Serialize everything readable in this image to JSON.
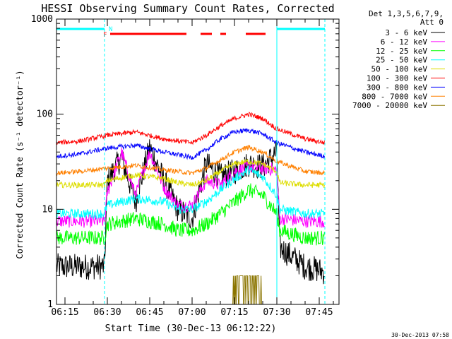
{
  "chart_data": {
    "type": "line",
    "title": "HESSI Observing Summary Count Rates, Corrected",
    "xlabel": "Start Time (30-Dec-13 06:12:22)",
    "ylabel": "Corrected Count Rate (s⁻¹ detector⁻¹)",
    "y_scale": "log",
    "ylim": [
      1,
      1000
    ],
    "xlim": [
      "06:12",
      "07:52"
    ],
    "y_ticks": [
      "1",
      "10",
      "100",
      "1000"
    ],
    "x_ticks": [
      "06:15",
      "06:30",
      "06:45",
      "07:00",
      "07:15",
      "07:30",
      "07:45"
    ],
    "timestamp": "30-Dec-2013 07:58",
    "legend": {
      "header": [
        "Det 1,3,5,6,7,9,",
        "Att 0"
      ],
      "placement": "right"
    },
    "annotations": [
      {
        "label": "F",
        "color": "#ff0000"
      },
      {
        "label": "N",
        "color": "#00ffff"
      }
    ],
    "series": [
      {
        "name": "3 - 6 keV",
        "color": "#000000",
        "times": [
          "06:12",
          "06:29",
          "06:30",
          "06:35",
          "06:40",
          "06:45",
          "06:50",
          "06:55",
          "07:00",
          "07:05",
          "07:10",
          "07:15",
          "07:20",
          "07:25",
          "07:30",
          "07:31",
          "07:40",
          "07:47"
        ],
        "values": [
          2.5,
          2.5,
          20,
          35,
          12,
          45,
          20,
          10,
          8,
          30,
          22,
          25,
          30,
          28,
          40,
          4,
          2.5,
          2.2
        ]
      },
      {
        "name": "6 - 12 keV",
        "color": "#ff00ff",
        "times": [
          "06:12",
          "06:29",
          "06:30",
          "06:35",
          "06:40",
          "06:45",
          "06:50",
          "06:55",
          "07:00",
          "07:05",
          "07:10",
          "07:15",
          "07:20",
          "07:25",
          "07:30",
          "07:31",
          "07:40",
          "07:47"
        ],
        "values": [
          7.5,
          7.5,
          15,
          40,
          14,
          40,
          17,
          11,
          11,
          20,
          18,
          25,
          28,
          27,
          26,
          8,
          7.5,
          7.5
        ]
      },
      {
        "name": "12 - 25 keV",
        "color": "#00ff00",
        "times": [
          "06:12",
          "06:29",
          "06:30",
          "06:40",
          "06:50",
          "06:55",
          "07:00",
          "07:05",
          "07:10",
          "07:15",
          "07:20",
          "07:25",
          "07:30",
          "07:31",
          "07:40",
          "07:47"
        ],
        "values": [
          5,
          5,
          7,
          8,
          7,
          6,
          6,
          7,
          9,
          12,
          16,
          14,
          9,
          6,
          5,
          5
        ]
      },
      {
        "name": "25 - 50 keV",
        "color": "#00ffff",
        "times": [
          "06:12",
          "06:29",
          "06:30",
          "06:40",
          "06:50",
          "06:55",
          "07:00",
          "07:05",
          "07:10",
          "07:15",
          "07:20",
          "07:25",
          "07:30",
          "07:31",
          "07:40",
          "07:47"
        ],
        "values": [
          9,
          9,
          11,
          13,
          12,
          10,
          10,
          12,
          16,
          21,
          26,
          22,
          14,
          10,
          9,
          9
        ]
      },
      {
        "name": "50 - 100 keV",
        "color": "#dddd00",
        "times": [
          "06:12",
          "06:29",
          "06:30",
          "06:40",
          "06:50",
          "06:55",
          "07:00",
          "07:05",
          "07:10",
          "07:15",
          "07:20",
          "07:25",
          "07:30",
          "07:31",
          "07:40",
          "07:47"
        ],
        "values": [
          18,
          18,
          20,
          23,
          21,
          19,
          18,
          20,
          25,
          30,
          32,
          30,
          25,
          19,
          18,
          18
        ]
      },
      {
        "name": "100 - 300 keV",
        "color": "#ff0000",
        "times": [
          "06:12",
          "06:20",
          "06:30",
          "06:40",
          "06:50",
          "07:00",
          "07:05",
          "07:10",
          "07:15",
          "07:20",
          "07:25",
          "07:30",
          "07:40",
          "07:47"
        ],
        "values": [
          50,
          52,
          60,
          65,
          55,
          50,
          60,
          75,
          90,
          100,
          90,
          70,
          55,
          50
        ]
      },
      {
        "name": "300 - 800 keV",
        "color": "#0000ff",
        "times": [
          "06:12",
          "06:20",
          "06:30",
          "06:40",
          "06:50",
          "07:00",
          "07:05",
          "07:10",
          "07:15",
          "07:20",
          "07:25",
          "07:30",
          "07:40",
          "07:47"
        ],
        "values": [
          36,
          38,
          44,
          47,
          40,
          35,
          42,
          55,
          65,
          68,
          62,
          50,
          40,
          36
        ]
      },
      {
        "name": "800 - 7000 keV",
        "color": "#ff8000",
        "times": [
          "06:12",
          "06:20",
          "06:30",
          "06:40",
          "06:50",
          "07:00",
          "07:05",
          "07:10",
          "07:15",
          "07:20",
          "07:25",
          "07:30",
          "07:40",
          "07:47"
        ],
        "values": [
          24,
          25,
          27,
          29,
          26,
          24,
          27,
          33,
          40,
          45,
          40,
          32,
          25,
          24
        ]
      },
      {
        "name": "7000 - 20000 keV",
        "color": "#8b7500",
        "times": [
          "07:14",
          "07:15",
          "07:18",
          "07:20",
          "07:22",
          "07:24",
          "07:25"
        ],
        "values": [
          1,
          2,
          2,
          2,
          2,
          2,
          1
        ]
      }
    ],
    "state_bars": [
      {
        "name": "N",
        "color": "#00ffff",
        "intervals": [
          [
            "06:12",
            "06:29"
          ],
          [
            "07:30",
            "07:47"
          ]
        ]
      },
      {
        "name": "F",
        "color": "#ff0000",
        "intervals": [
          [
            "06:31",
            "06:58"
          ],
          [
            "07:03",
            "07:07"
          ],
          [
            "07:10",
            "07:12"
          ],
          [
            "07:19",
            "07:26"
          ]
        ]
      }
    ],
    "markers": [
      {
        "color": "#00ffff",
        "style": "solid",
        "at": [
          "06:12",
          "07:30"
        ]
      },
      {
        "color": "#00ffff",
        "style": "dashed",
        "at": [
          "06:29",
          "07:47"
        ]
      }
    ]
  }
}
